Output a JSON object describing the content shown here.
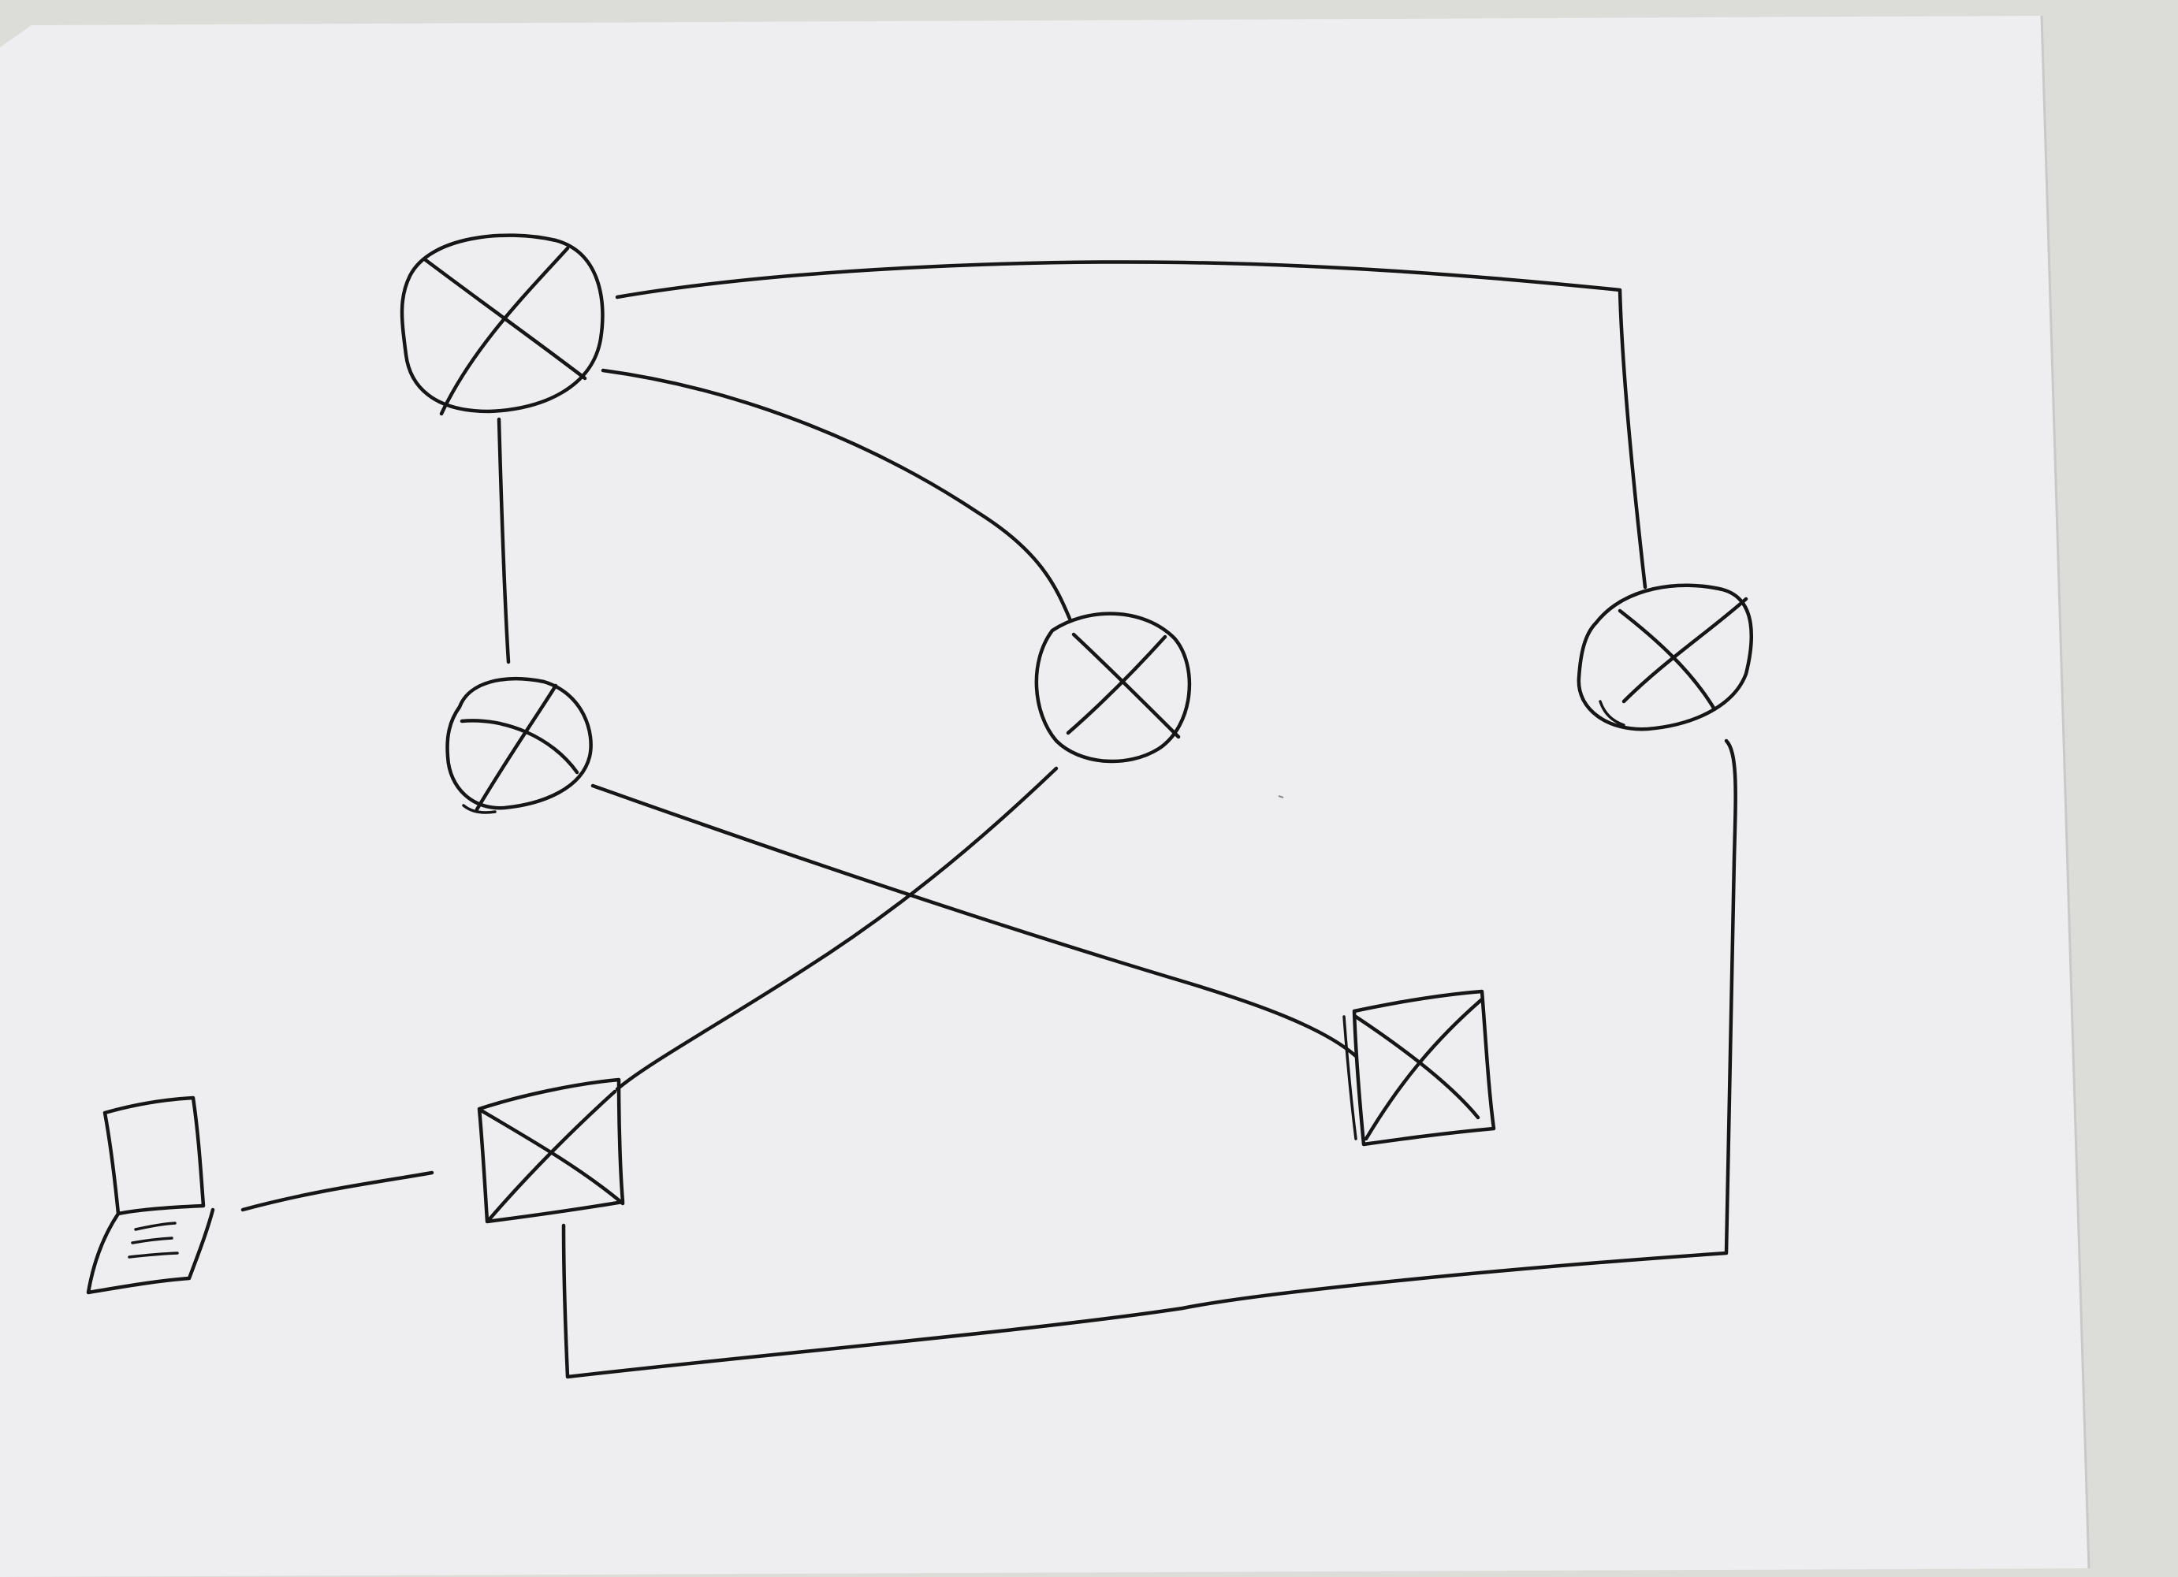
{
  "colors": {
    "background": "#dcdcd8",
    "paper": "#eeeef0",
    "ink": "#161616"
  },
  "diagram": {
    "nodes": [
      {
        "id": "router-top-left",
        "kind": "router",
        "icon": "router-icon"
      },
      {
        "id": "router-middle-left",
        "kind": "router",
        "icon": "router-icon"
      },
      {
        "id": "router-center",
        "kind": "router",
        "icon": "router-icon"
      },
      {
        "id": "router-right",
        "kind": "router",
        "icon": "router-icon"
      },
      {
        "id": "switch-bottom-left",
        "kind": "switch",
        "icon": "switch-icon"
      },
      {
        "id": "switch-bottom-right",
        "kind": "switch",
        "icon": "switch-icon"
      },
      {
        "id": "laptop",
        "kind": "host",
        "icon": "laptop-icon"
      }
    ],
    "links": [
      {
        "from": "router-top-left",
        "to": "router-right"
      },
      {
        "from": "router-top-left",
        "to": "router-middle-left"
      },
      {
        "from": "router-top-left",
        "to": "router-center"
      },
      {
        "from": "router-center",
        "to": "switch-bottom-left"
      },
      {
        "from": "router-middle-left",
        "to": "switch-bottom-right"
      },
      {
        "from": "router-right",
        "to": "switch-bottom-left"
      },
      {
        "from": "laptop",
        "to": "switch-bottom-left"
      }
    ]
  }
}
